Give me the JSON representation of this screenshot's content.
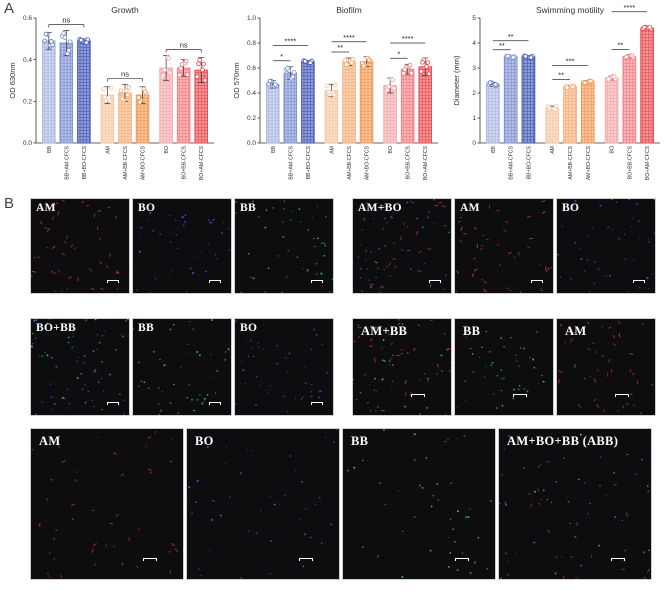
{
  "panel_labels": [
    "A",
    "B"
  ],
  "chart_data": [
    {
      "type": "bar",
      "title": "Growth",
      "ylabel": "OD 630nm",
      "ylim": [
        0,
        0.6
      ],
      "yticks": [
        "0.0",
        "0.2",
        "0.4",
        "0.6"
      ],
      "categories": [
        "BB",
        "BB+AM-CFCS",
        "BB+BO-CFCS",
        "AM",
        "AM+BB-CFCS",
        "AM+BO-CFCS",
        "BO",
        "BO+BB-CFCS",
        "BO+AM-CFCS"
      ],
      "values": [
        0.49,
        0.48,
        0.49,
        0.23,
        0.24,
        0.23,
        0.36,
        0.36,
        0.35
      ],
      "errors": [
        0.04,
        0.06,
        0.01,
        0.04,
        0.04,
        0.04,
        0.06,
        0.04,
        0.06
      ],
      "colors": [
        "#aab6e0",
        "#7d8fd0",
        "#3e55b4",
        "#f6c7a2",
        "#f4ad78",
        "#f19650",
        "#f5a7a9",
        "#f07d80",
        "#e8484d"
      ],
      "significance": [
        {
          "from": 0,
          "to": 2,
          "label": "ns"
        },
        {
          "from": 3,
          "to": 5,
          "label": "ns"
        },
        {
          "from": 6,
          "to": 8,
          "label": "ns"
        }
      ]
    },
    {
      "type": "bar",
      "title": "Biofilm",
      "ylabel": "OD 570nm",
      "ylim": [
        0,
        1.0
      ],
      "yticks": [
        "0.0",
        "0.2",
        "0.4",
        "0.6",
        "0.8",
        "1.0"
      ],
      "categories": [
        "BB",
        "BB+AM-CFCS",
        "BB+BO-CFCS",
        "AM",
        "AM+BB-CFCS",
        "AM+BO-CFCS",
        "BO",
        "BO+BB-CFCS",
        "BO+AM-CFCS"
      ],
      "values": [
        0.47,
        0.56,
        0.65,
        0.42,
        0.65,
        0.65,
        0.46,
        0.59,
        0.61
      ],
      "errors": [
        0.03,
        0.05,
        0.01,
        0.05,
        0.03,
        0.04,
        0.06,
        0.04,
        0.07
      ],
      "colors": [
        "#aab6e0",
        "#7d8fd0",
        "#3e55b4",
        "#f6c7a2",
        "#f4ad78",
        "#f19650",
        "#f5a7a9",
        "#f07d80",
        "#e8484d"
      ],
      "significance": [
        {
          "from": 0,
          "to": 1,
          "label": "*",
          "level": 0
        },
        {
          "from": 0,
          "to": 2,
          "label": "****",
          "level": 1
        },
        {
          "from": 3,
          "to": 4,
          "label": "**",
          "level": 0
        },
        {
          "from": 3,
          "to": 5,
          "label": "****",
          "level": 1
        },
        {
          "from": 6,
          "to": 7,
          "label": "*",
          "level": 0
        },
        {
          "from": 6,
          "to": 8,
          "label": "****",
          "level": 1
        }
      ]
    },
    {
      "type": "bar",
      "title": "Swimming motility",
      "ylabel": "Diameter (mm)",
      "ylim": [
        0,
        5
      ],
      "yticks": [
        "0",
        "1",
        "2",
        "3",
        "4",
        "5"
      ],
      "categories": [
        "BB",
        "BB+AM-CFCS",
        "BB+BO-CFCS",
        "AM",
        "AM+BB-CFCS",
        "AM+BO-CFCS",
        "BO",
        "BO+BB-CFCS",
        "BO+AM-CFCS"
      ],
      "values": [
        2.35,
        3.45,
        3.45,
        1.4,
        2.25,
        2.45,
        2.6,
        3.45,
        4.6
      ],
      "errors": [
        0.08,
        0.04,
        0.04,
        0.08,
        0.05,
        0.05,
        0.08,
        0.05,
        0.05
      ],
      "colors": [
        "#aab6e0",
        "#7d8fd0",
        "#3e55b4",
        "#f6c7a2",
        "#f4ad78",
        "#f19650",
        "#f5a7a9",
        "#f07d80",
        "#e8484d"
      ],
      "significance": [
        {
          "from": 0,
          "to": 1,
          "label": "**",
          "level": 0
        },
        {
          "from": 0,
          "to": 2,
          "label": "**",
          "level": 1
        },
        {
          "from": 3,
          "to": 4,
          "label": "**",
          "level": 0
        },
        {
          "from": 3,
          "to": 5,
          "label": "***",
          "level": 1
        },
        {
          "from": 6,
          "to": 7,
          "label": "**",
          "level": 0
        },
        {
          "from": 6,
          "to": 8,
          "label": "****",
          "level": 1
        }
      ]
    }
  ],
  "micrographs": {
    "row1_left": [
      "AM",
      "BO",
      "BB"
    ],
    "row1_right": [
      "AM+BO",
      "AM",
      "BO"
    ],
    "row2_left": [
      "BO+BB",
      "BB",
      "BO"
    ],
    "row2_right": [
      "AM+BB",
      "BB",
      "AM"
    ],
    "row3": [
      "AM",
      "BO",
      "BB",
      "AM+BO+BB (ABB)"
    ]
  },
  "channel_colors": {
    "AM": "#e03a3a",
    "BO": "#3d63e0",
    "BB": "#32d15a"
  }
}
